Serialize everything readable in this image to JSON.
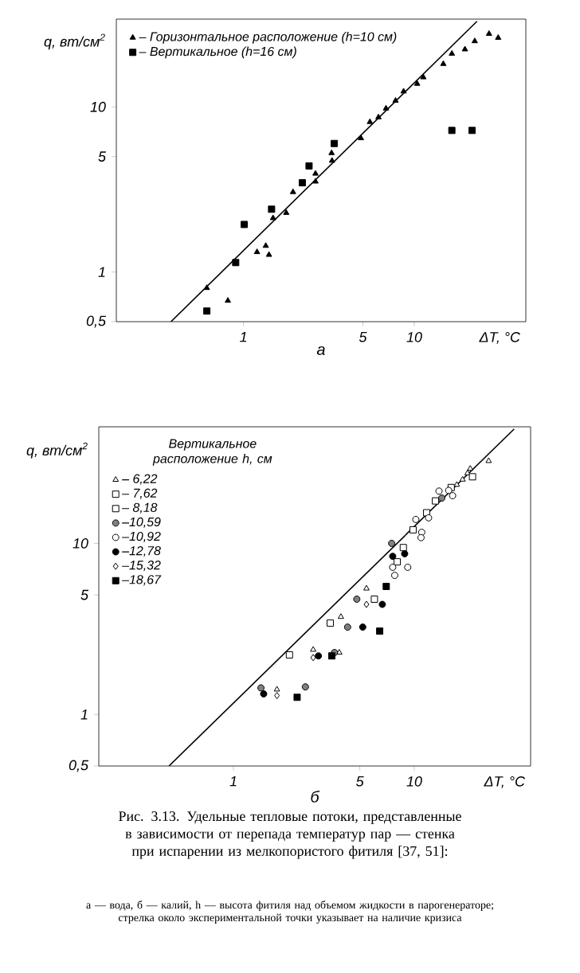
{
  "chart_data": [
    {
      "type": "scatter",
      "title": "а",
      "xlabel": "ΔT, °C",
      "ylabel": "q, вт/см$^{2}$",
      "log": "xy",
      "legend": "top left",
      "xlim": [
        0.18,
        45
      ],
      "ylim": [
        0.5,
        34
      ],
      "xticks": [
        1,
        5,
        10
      ],
      "yticks": [
        {
          "value": 0.5,
          "label": "0,5"
        },
        1,
        5,
        10
      ],
      "series": [
        {
          "name": "– Горизонтальное расположение (h=10 см)",
          "color": "#000000",
          "marker": "triangle",
          "x": [
            0.61,
            0.81,
            1.2,
            1.35,
            1.41,
            1.49,
            1.78,
            1.95,
            2.64,
            2.64,
            3.28,
            3.3,
            4.87,
            5.5,
            6.17,
            6.83,
            7.77,
            8.66,
            10.4,
            11.3,
            14.8,
            16.6,
            19.8,
            22.6,
            27.4,
            31
          ],
          "values": [
            0.8,
            0.67,
            1.32,
            1.44,
            1.27,
            2.12,
            2.28,
            3.05,
            3.53,
            3.94,
            5.25,
            4.72,
            6.46,
            8.1,
            8.65,
            9.78,
            10.9,
            12.4,
            13.8,
            15.1,
            18.2,
            21.0,
            22.3,
            25.0,
            27.7,
            26.2
          ]
        },
        {
          "name": "– Вертикальное (h=16 см)",
          "color": "#000000",
          "marker": "square",
          "x": [
            0.61,
            0.9,
            1.01,
            1.46,
            2.21,
            2.42,
            3.4,
            16.6,
            21.8
          ],
          "values": [
            0.58,
            1.14,
            1.94,
            2.4,
            3.47,
            4.39,
            6.0,
            7.2,
            7.2
          ]
        },
        {
          "type": "line",
          "color": "#000000",
          "x": [
            0.376,
            23.3
          ],
          "values": [
            0.5,
            33
          ]
        }
      ]
    },
    {
      "type": "scatter",
      "title": "б",
      "xlabel": "ΔT, °C",
      "ylabel": "q, вт/см$^{2}$",
      "log": "xy",
      "legend": "top left",
      "legend_title": "Вертикальное расположение h, см",
      "xlim": [
        0.18,
        44
      ],
      "ylim": [
        0.5,
        48
      ],
      "xticks": [
        1,
        5,
        10
      ],
      "yticks": [
        {
          "value": 0.5,
          "label": "0,5"
        },
        1,
        5,
        10
      ],
      "series": [
        {
          "name": "– 6,22",
          "color": "#ffffff",
          "marker": "triangle",
          "x": [
            1.74,
            2.76,
            3.85,
            3.93,
            5.44,
            17.2,
            18.5,
            19.7,
            20.4,
            25.8
          ],
          "values": [
            1.4,
            2.39,
            2.3,
            3.72,
            5.45,
            22.0,
            23.6,
            25.7,
            27.3,
            30.3
          ]
        },
        {
          "name": "– 7,62",
          "color": "#ffffff",
          "marker": "square",
          "x": [
            2.04,
            3.43,
            6.02,
            8.05,
            9.85,
            13.1,
            21.0
          ],
          "values": [
            2.23,
            3.42,
            4.72,
            7.8,
            12.0,
            17.7,
            24.5
          ]
        },
        {
          "name": "– 8,18",
          "color": "#ffffff",
          "marker": "square",
          "x": [
            8.7,
            11.7,
            16.0
          ],
          "values": [
            9.45,
            15.1,
            21.2
          ]
        },
        {
          "name": "–10,59",
          "color": "#808080",
          "marker": "circle",
          "x": [
            1.42,
            2.5,
            3.62,
            4.28,
            4.81,
            7.5,
            14.2
          ],
          "values": [
            1.43,
            1.45,
            2.3,
            3.24,
            4.72,
            10.0,
            18.4
          ]
        },
        {
          "name": "–10,92",
          "color": "#ffffff",
          "marker": "circle",
          "x": [
            7.6,
            7.8,
            9.2,
            10.2,
            11.0,
            10.9,
            12.0,
            13.7,
            15.5,
            16.3
          ],
          "values": [
            7.25,
            6.5,
            7.25,
            13.8,
            11.6,
            10.8,
            14.1,
            20.2,
            20.4,
            19.0
          ]
        },
        {
          "name": "–12,78",
          "color": "#000000",
          "marker": "circle",
          "x": [
            1.47,
            2.95,
            5.19,
            6.66,
            7.6,
            8.85
          ],
          "values": [
            1.32,
            2.2,
            3.24,
            4.4,
            8.4,
            8.7
          ]
        },
        {
          "name": "–15,32",
          "color": "#ffffff",
          "marker": "diamond",
          "x": [
            1.74,
            2.76,
            5.44
          ],
          "values": [
            1.29,
            2.15,
            4.4
          ]
        },
        {
          "name": "–18,67",
          "color": "#000000",
          "marker": "square",
          "x": [
            2.25,
            3.5,
            6.44,
            7.0
          ],
          "values": [
            1.26,
            2.2,
            3.07,
            5.6
          ]
        },
        {
          "type": "line",
          "color": "#000000",
          "x": [
            0.44,
            35.7
          ],
          "values": [
            0.5,
            46.6
          ]
        }
      ],
      "annotations": [
        "Рис. 3.13. Удельные тепловые потоки, представленные в зависимости от перепада температур пар — стенка при испарении из мелкопористого фитиля [37, 51]:",
        "а — вода, б — калий, h — высота фитиля над объемом жидкости в парогенераторе; стрелка около экспериментальной точки указывает на наличие кризиса"
      ]
    }
  ]
}
